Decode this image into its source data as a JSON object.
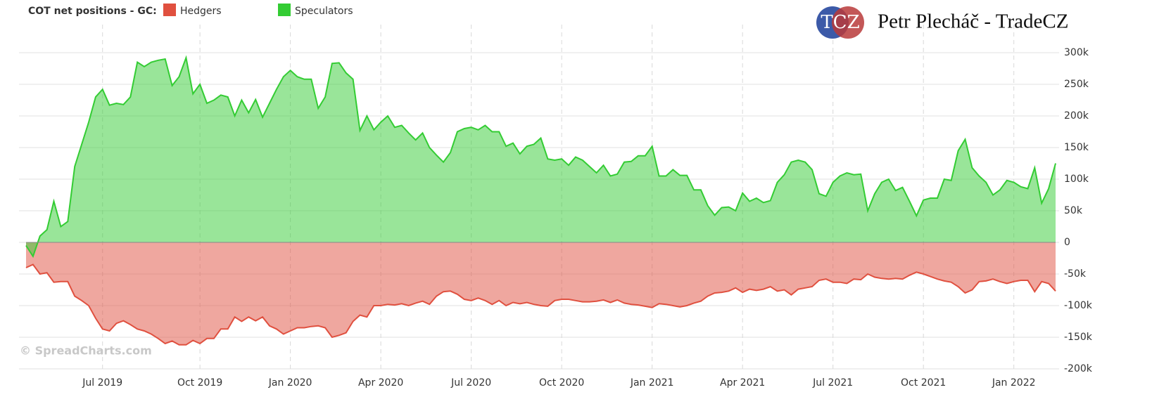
{
  "chart_data": {
    "type": "area",
    "title": "COT net positions - GC:",
    "brand": "Petr Plecháč - TradeCZ",
    "logo": "TCZ",
    "watermark": "© SpreadCharts.com",
    "categories": [
      null,
      null,
      null,
      null,
      null,
      null,
      null,
      null,
      null,
      null,
      null,
      "Jul 2019",
      null,
      null,
      null,
      null,
      null,
      null,
      null,
      null,
      null,
      null,
      null,
      null,
      null,
      "Oct 2019",
      null,
      null,
      null,
      null,
      null,
      null,
      null,
      null,
      null,
      null,
      null,
      null,
      "Jan 2020",
      null,
      null,
      null,
      null,
      null,
      null,
      null,
      null,
      null,
      null,
      null,
      null,
      "Apr 2020",
      null,
      null,
      null,
      null,
      null,
      null,
      null,
      null,
      null,
      null,
      null,
      null,
      "Jul 2020",
      null,
      null,
      null,
      null,
      null,
      null,
      null,
      null,
      null,
      null,
      null,
      null,
      "Oct 2020",
      null,
      null,
      null,
      null,
      null,
      null,
      null,
      null,
      null,
      null,
      null,
      null,
      "Jan 2021",
      null,
      null,
      null,
      null,
      null,
      null,
      null,
      null,
      null,
      null,
      null,
      null,
      "Apr 2021",
      null,
      null,
      null,
      null,
      null,
      null,
      null,
      null,
      null,
      null,
      null,
      null,
      "Jul 2021",
      null,
      null,
      null,
      null,
      null,
      null,
      null,
      null,
      null,
      null,
      null,
      null,
      "Oct 2021",
      null,
      null,
      null,
      null,
      null,
      null,
      null,
      null,
      null,
      null,
      null,
      null,
      "Jan 2022",
      null,
      null,
      null,
      null,
      null,
      null
    ],
    "series": [
      {
        "name": "Hedgers",
        "color": "#e0503f",
        "values": [
          -40,
          -35,
          -50,
          -48,
          -63,
          -62,
          -62,
          -85,
          -92,
          -100,
          -120,
          -137,
          -140,
          -128,
          -124,
          -130,
          -137,
          -140,
          -145,
          -152,
          -160,
          -156,
          -162,
          -162,
          -155,
          -160,
          -152,
          -152,
          -137,
          -137,
          -118,
          -125,
          -118,
          -124,
          -118,
          -132,
          -137,
          -145,
          -140,
          -135,
          -135,
          -133,
          -132,
          -135,
          -150,
          -147,
          -143,
          -125,
          -115,
          -118,
          -100,
          -100,
          -98,
          -99,
          -97,
          -100,
          -96,
          -93,
          -98,
          -85,
          -78,
          -77,
          -82,
          -90,
          -92,
          -88,
          -92,
          -98,
          -92,
          -100,
          -95,
          -97,
          -95,
          -98,
          -100,
          -101,
          -92,
          -90,
          -90,
          -92,
          -94,
          -94,
          -93,
          -91,
          -95,
          -91,
          -96,
          -98,
          -99,
          -101,
          -103,
          -97,
          -98,
          -100,
          -102,
          -100,
          -96,
          -93,
          -85,
          -80,
          -79,
          -77,
          -72,
          -79,
          -74,
          -76,
          -74,
          -70,
          -77,
          -75,
          -83,
          -74,
          -72,
          -70,
          -60,
          -58,
          -63,
          -63,
          -65,
          -58,
          -59,
          -50,
          -55,
          -57,
          -58,
          -57,
          -58,
          -52,
          -47,
          -50,
          -54,
          -58,
          -61,
          -63,
          -70,
          -80,
          -75,
          -62,
          -61,
          -58,
          -62,
          -65,
          -62,
          -60,
          -60,
          -78,
          -62,
          -65,
          -77
        ]
      },
      {
        "name": "Speculators",
        "color": "#33cc33",
        "values": [
          -5,
          -22,
          10,
          20,
          65,
          25,
          33,
          120,
          155,
          190,
          230,
          242,
          217,
          220,
          218,
          230,
          285,
          278,
          285,
          288,
          290,
          248,
          262,
          292,
          235,
          250,
          220,
          225,
          233,
          230,
          200,
          225,
          205,
          226,
          198,
          220,
          242,
          262,
          272,
          262,
          258,
          258,
          212,
          230,
          283,
          284,
          268,
          258,
          177,
          200,
          178,
          190,
          200,
          182,
          185,
          173,
          162,
          173,
          150,
          138,
          127,
          142,
          175,
          180,
          182,
          178,
          185,
          175,
          175,
          152,
          157,
          140,
          152,
          155,
          165,
          132,
          130,
          132,
          122,
          135,
          130,
          120,
          110,
          122,
          105,
          108,
          127,
          128,
          137,
          137,
          152,
          105,
          105,
          115,
          106,
          106,
          83,
          83,
          58,
          43,
          55,
          56,
          50,
          78,
          65,
          70,
          63,
          66,
          95,
          107,
          127,
          130,
          127,
          115,
          77,
          73,
          95,
          105,
          110,
          107,
          108,
          50,
          77,
          95,
          100,
          82,
          87,
          65,
          42,
          67,
          70,
          70,
          100,
          98,
          145,
          163,
          118,
          105,
          95,
          75,
          83,
          98,
          95,
          88,
          85,
          118,
          62,
          85,
          125
        ]
      }
    ],
    "ylim": [
      -200,
      300
    ],
    "yticks": [
      {
        "value": -200,
        "label": "-200k"
      },
      {
        "value": -150,
        "label": "-150k"
      },
      {
        "value": -100,
        "label": "-100k"
      },
      {
        "value": -50,
        "label": "-50k"
      },
      0,
      {
        "value": 50,
        "label": "50k"
      },
      {
        "value": 100,
        "label": "100k"
      },
      {
        "value": 150,
        "label": "150k"
      },
      {
        "value": 200,
        "label": "200k"
      },
      {
        "value": 250,
        "label": "250k"
      },
      {
        "value": 300,
        "label": "300k"
      }
    ],
    "grid": true
  }
}
